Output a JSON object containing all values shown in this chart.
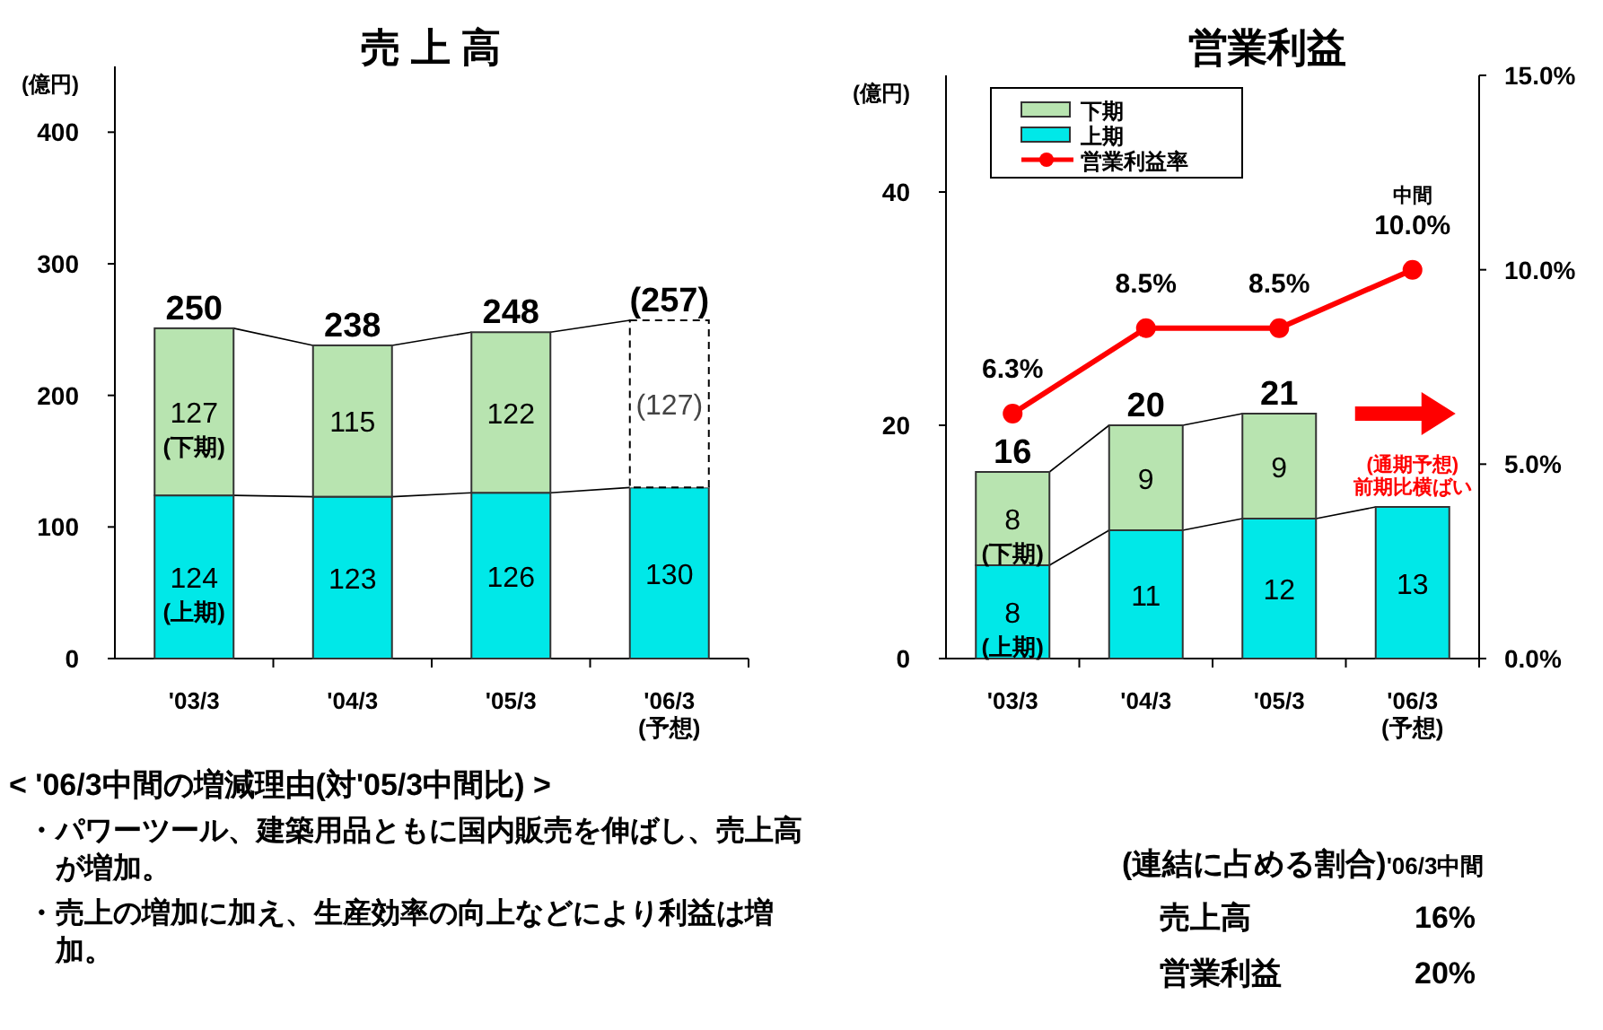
{
  "chart_data": [
    {
      "type": "bar",
      "title": "売 上 高",
      "ylabel": "(億円)",
      "stacked": true,
      "categories": [
        "'03/3",
        "'04/3",
        "'05/3",
        "'06/3\n(予想)"
      ],
      "ylim": [
        0,
        450
      ],
      "yticks": [
        0,
        100,
        200,
        300,
        400
      ],
      "series": [
        {
          "color": "#00e8e8",
          "values": [
            124,
            123,
            126,
            130
          ],
          "value_labels": [
            "124",
            "123",
            "126",
            "130"
          ]
        },
        {
          "colors": [
            "#b8e4b0",
            "#b8e4b0",
            "#b8e4b0",
            "#ffffff"
          ],
          "values": [
            127,
            115,
            122,
            127
          ],
          "value_labels": [
            "127",
            "115",
            "122",
            "(127)"
          ]
        }
      ],
      "totals": [
        "250",
        "238",
        "248",
        "(257)"
      ],
      "annotations": [
        "(上期)",
        "(下期)"
      ]
    },
    {
      "type": "bar",
      "title": "営業利益",
      "ylabel": "(億円)",
      "stacked": true,
      "legend": "top left",
      "categories": [
        "'03/3",
        "'04/3",
        "'05/3",
        "'06/3\n(予想)"
      ],
      "ylim": [
        0,
        50
      ],
      "yticks": [
        0,
        20,
        40
      ],
      "y2lim": [
        0,
        15
      ],
      "y2ticks": [
        {
          "value": 0,
          "label": "0.0%"
        },
        {
          "value": 5,
          "label": "5.0%"
        },
        {
          "value": 10,
          "label": "10.0%"
        },
        {
          "value": 15,
          "label": "15.0%"
        }
      ],
      "series": [
        {
          "name": "上期",
          "color": "#00e8e8",
          "values": [
            8,
            11,
            12,
            13
          ],
          "value_labels": [
            "8",
            "11",
            "12",
            "13"
          ]
        },
        {
          "name": "下期",
          "color": "#b8e4b0",
          "values": [
            8,
            9,
            9,
            null
          ],
          "value_labels": [
            "8",
            "9",
            "9",
            null
          ]
        },
        {
          "name": "営業利益率",
          "type": "line",
          "axis": "y2",
          "color": "#ff0000",
          "marker": "circle",
          "values": [
            6.3,
            8.5,
            8.5,
            10.0
          ],
          "value_labels": [
            "6.3%",
            "8.5%",
            "8.5%",
            "10.0%"
          ]
        }
      ],
      "totals": [
        "16",
        "20",
        "21",
        null
      ],
      "annotations": [
        "(上期)",
        "(下期)",
        "中間",
        "(通期予想)\n前期比横ばい"
      ]
    },
    {
      "type": "other",
      "title": "< '06/3中間の増減理由(対'05/3中間比) >",
      "annotations": [
        "・パワーツール、建築用品ともに国内販売を伸ばし、売上高が増加。",
        "・売上の増加に加え、生産効率の向上などにより利益は増加。"
      ]
    },
    {
      "type": "other",
      "title": "(連結に占める割合)",
      "subtitle": "'06/3中間",
      "annotations": [
        "売上高",
        "16%",
        "営業利益",
        "20%"
      ]
    }
  ]
}
